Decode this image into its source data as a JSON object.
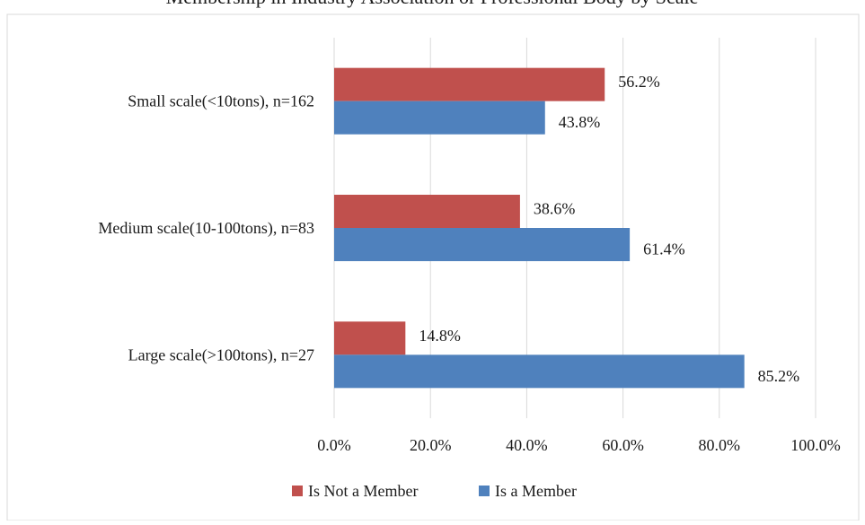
{
  "chart_data": {
    "type": "bar",
    "orientation": "horizontal",
    "title": "Membership in Industry Association or Professional Body by Scale",
    "categories": [
      "Small scale(<10tons), n=162",
      "Medium scale(10-100tons), n=83",
      "Large scale(>100tons), n=27"
    ],
    "series": [
      {
        "name": "Is Not a Member",
        "color": "#c0504d",
        "values": [
          56.2,
          38.6,
          14.8
        ]
      },
      {
        "name": "Is a Member",
        "color": "#4f81bd",
        "values": [
          43.8,
          61.4,
          85.2
        ]
      }
    ],
    "value_format": "percent_1dp",
    "xlim": [
      0,
      100
    ],
    "xticks": [
      0,
      20,
      40,
      60,
      80,
      100
    ],
    "xtick_labels": [
      "0.0%",
      "20.0%",
      "40.0%",
      "60.0%",
      "80.0%",
      "100.0%"
    ],
    "grid": "vertical",
    "legend_position": "bottom",
    "gridline_color": "#d9d9d9",
    "frame_color": "#d9d9d9"
  }
}
